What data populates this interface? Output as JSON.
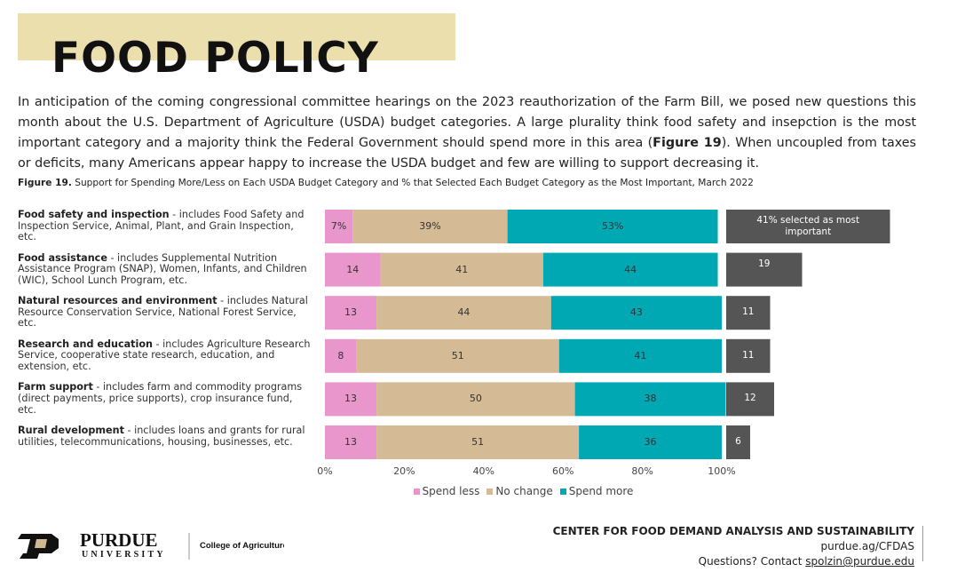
{
  "header": {
    "title": "FOOD POLICY"
  },
  "intro": {
    "parts": [
      "In anticipation of the coming congressional committee hearings on the 2023 reauthorization of the Farm Bill, we posed new questions this month about the U.S. Department of Agriculture (USDA) budget categories. A large plurality think food safety and insepction is the most important category and a majority think the Federal Government should spend more in this area (",
      "Figure 19",
      "). When uncoupled from taxes or deficits, many Americans appear happy to increase the USDA budget and few are willing to support decreasing it."
    ]
  },
  "chart_data": {
    "type": "stacked-bar-horizontal",
    "figure_label": "Figure 19.",
    "title": "Support for Spending More/Less on Each USDA Budget Category and % that Selected Each Budget Category as the Most Important, March 2022",
    "categories": [
      "Food safety and inspection",
      "Food assistance",
      "Natural resources and environment",
      "Research and education",
      "Farm support",
      "Rural development"
    ],
    "category_notes": [
      " - includes Food Safety and Inspection Service, Animal, Plant, and Grain Inspection, etc.",
      " - includes Supplemental Nutrition Assistance Program (SNAP), Women, Infants, and Children (WIC), School Lunch Program, etc.",
      " - includes Natural Resource Conservation Service, National Forest Service, etc.",
      " - includes Agriculture Research Service, cooperative state research, education, and extension, etc.",
      " - includes farm and commodity programs (direct payments, price supports), crop insurance fund, etc.",
      " - includes loans and grants for rural utilities, telecommunications, housing, businesses, etc."
    ],
    "series": [
      {
        "name": "Spend less",
        "color": "#e896cc",
        "values": [
          7,
          14,
          13,
          8,
          13,
          13
        ],
        "value_labels": [
          "7%",
          "14",
          "13",
          "8",
          "13",
          "13"
        ]
      },
      {
        "name": "No change",
        "color": "#d4bb95",
        "values": [
          39,
          41,
          44,
          51,
          50,
          51
        ],
        "value_labels": [
          "39%",
          "41",
          "44",
          "51",
          "50",
          "51"
        ]
      },
      {
        "name": "Spend more",
        "color": "#00a8b4",
        "values": [
          53,
          44,
          43,
          41,
          38,
          36
        ],
        "value_labels": [
          "53%",
          "44",
          "43",
          "41",
          "38",
          "36"
        ]
      }
    ],
    "most_important": {
      "color": "#555555",
      "values": [
        41,
        19,
        11,
        11,
        12,
        6
      ],
      "value_labels": [
        "41% selected as most important",
        "19",
        "11",
        "11",
        "12",
        "6"
      ]
    },
    "xlim": [
      0,
      100
    ],
    "xticks": [
      {
        "value": 0,
        "label": "0%"
      },
      {
        "value": 20,
        "label": "20%"
      },
      {
        "value": 40,
        "label": "40%"
      },
      {
        "value": 60,
        "label": "60%"
      },
      {
        "value": 80,
        "label": "80%"
      },
      {
        "value": 100,
        "label": "100%"
      }
    ],
    "legend": "bottom"
  },
  "footer": {
    "logo_top": "PURDUE",
    "logo_bottom": "UNIVERSITY",
    "college": "College of Agriculture",
    "center": "CENTER FOR FOOD DEMAND ANALYSIS AND SUSTAINABILITY",
    "url": "purdue.ag/CFDAS",
    "contact": "Questions? Contact ",
    "email": "spolzin@purdue.edu"
  }
}
